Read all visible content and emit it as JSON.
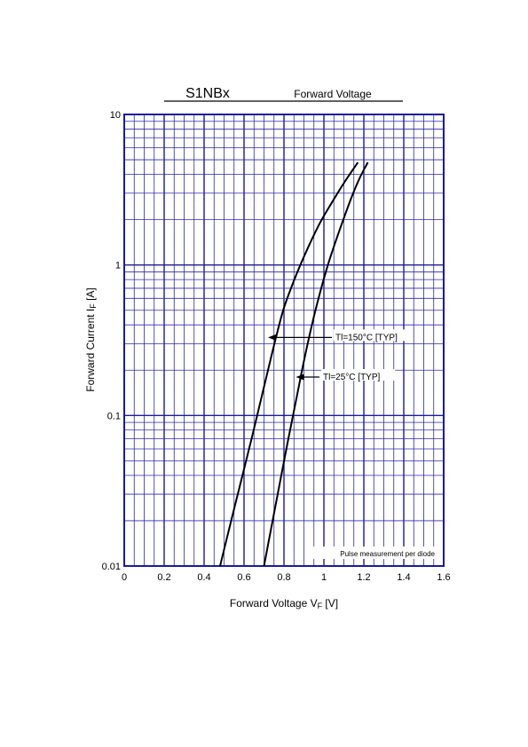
{
  "chart_data": {
    "type": "line",
    "title": "S1NBx",
    "subtitle": "Forward Voltage",
    "xlabel_main": "Forward Voltage  V",
    "xlabel_sub": "F",
    "xlabel_unit": "  [V]",
    "ylabel_main": "Forward Current  I",
    "ylabel_sub": "F",
    "ylabel_unit": "  [A]",
    "xlim": [
      0,
      1.6
    ],
    "ylim": [
      0.01,
      10
    ],
    "yscale": "log",
    "x_ticks": [
      0,
      0.2,
      0.4,
      0.6,
      0.8,
      1.0,
      1.2,
      1.4,
      1.6
    ],
    "x_tick_labels": [
      "0",
      "0.2",
      "0.4",
      "0.6",
      "0.8",
      "1",
      "1.2",
      "1.4",
      "1.6"
    ],
    "y_ticks": [
      0.01,
      0.1,
      1,
      10
    ],
    "y_tick_labels": [
      "0.01",
      "0.1",
      "1",
      "10"
    ],
    "grid": true,
    "note": "Pulse measurement per diode",
    "series": [
      {
        "name": "Tl=150°C [TYP]",
        "x": [
          0.48,
          0.52,
          0.56,
          0.6,
          0.64,
          0.68,
          0.72,
          0.76,
          0.8,
          0.86,
          0.92,
          0.98,
          1.04,
          1.1,
          1.17
        ],
        "y": [
          0.01,
          0.0165,
          0.027,
          0.044,
          0.072,
          0.12,
          0.2,
          0.33,
          0.52,
          0.85,
          1.3,
          1.9,
          2.6,
          3.5,
          4.8
        ]
      },
      {
        "name": "Tl=25°C [TYP]",
        "x": [
          0.7,
          0.74,
          0.78,
          0.82,
          0.86,
          0.9,
          0.94,
          0.98,
          1.02,
          1.06,
          1.1,
          1.14,
          1.18,
          1.22
        ],
        "y": [
          0.01,
          0.019,
          0.036,
          0.068,
          0.125,
          0.23,
          0.4,
          0.65,
          1.0,
          1.45,
          2.05,
          2.85,
          3.8,
          4.8
        ]
      }
    ],
    "annotations": [
      {
        "label": "Tl=150°C [TYP]",
        "series": 0,
        "point_x": 0.72,
        "point_y": 0.33
      },
      {
        "label": "Tl=25°C [TYP]",
        "series": 1,
        "point_x": 0.86,
        "point_y": 0.18
      }
    ]
  }
}
